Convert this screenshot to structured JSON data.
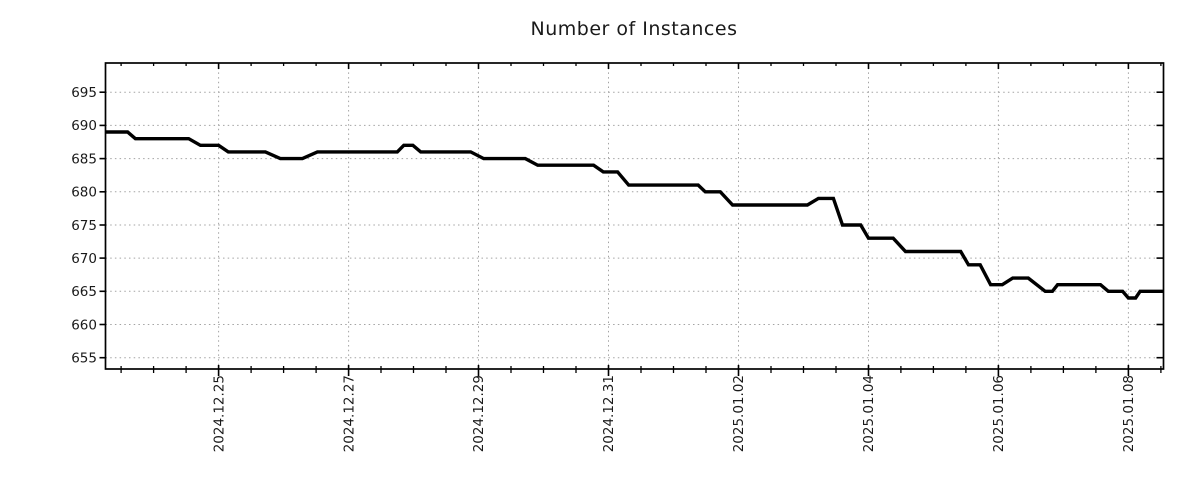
{
  "figure": {
    "background": "#ffffff",
    "text_color": "#1a1a1a"
  },
  "chart_data": {
    "type": "line",
    "title": "Number of Instances",
    "xlabel": "",
    "ylabel": "",
    "legend": "none",
    "grid": {
      "style": "dotted",
      "color": "#a3a3a3",
      "horizontal": true,
      "vertical": true
    },
    "x_axis": {
      "unit": "days relative to 2024-12-25 00:00",
      "range": [
        -1.74,
        14.54
      ],
      "major_ticks": [
        {
          "t": 0,
          "label": "2024.12.25"
        },
        {
          "t": 2,
          "label": "2024.12.27"
        },
        {
          "t": 4,
          "label": "2024.12.29"
        },
        {
          "t": 6,
          "label": "2024.12.31"
        },
        {
          "t": 8,
          "label": "2025.01.02"
        },
        {
          "t": 10,
          "label": "2025.01.04"
        },
        {
          "t": 12,
          "label": "2025.01.06"
        },
        {
          "t": 14,
          "label": "2025.01.08"
        }
      ],
      "minor_tick_interval": 0.5,
      "label_rotation_deg": 90
    },
    "y_axis": {
      "range": [
        653.3,
        699.4
      ],
      "major_ticks": [
        655,
        660,
        665,
        670,
        675,
        680,
        685,
        690,
        695
      ]
    },
    "series": [
      {
        "name": "instances",
        "color": "#000000",
        "line_width": 3.4,
        "points": [
          [
            -1.74,
            689
          ],
          [
            -1.4,
            689
          ],
          [
            -1.28,
            688
          ],
          [
            -0.46,
            688
          ],
          [
            -0.28,
            687
          ],
          [
            0.0,
            687
          ],
          [
            0.15,
            686
          ],
          [
            0.72,
            686
          ],
          [
            0.95,
            685
          ],
          [
            1.29,
            685
          ],
          [
            1.52,
            686
          ],
          [
            2.75,
            686
          ],
          [
            2.85,
            687
          ],
          [
            2.99,
            687
          ],
          [
            3.11,
            686
          ],
          [
            3.88,
            686
          ],
          [
            4.08,
            685
          ],
          [
            4.72,
            685
          ],
          [
            4.91,
            684
          ],
          [
            5.77,
            684
          ],
          [
            5.92,
            683
          ],
          [
            6.14,
            683
          ],
          [
            6.31,
            681
          ],
          [
            7.38,
            681
          ],
          [
            7.49,
            680
          ],
          [
            7.72,
            680
          ],
          [
            7.91,
            678
          ],
          [
            9.06,
            678
          ],
          [
            9.23,
            679
          ],
          [
            9.46,
            679
          ],
          [
            9.6,
            675
          ],
          [
            9.88,
            675
          ],
          [
            10.0,
            673
          ],
          [
            10.38,
            673
          ],
          [
            10.57,
            671
          ],
          [
            11.42,
            671
          ],
          [
            11.54,
            669
          ],
          [
            11.72,
            669
          ],
          [
            11.88,
            666
          ],
          [
            12.06,
            666
          ],
          [
            12.22,
            667
          ],
          [
            12.46,
            667
          ],
          [
            12.72,
            665
          ],
          [
            12.83,
            665
          ],
          [
            12.91,
            666
          ],
          [
            13.57,
            666
          ],
          [
            13.69,
            665
          ],
          [
            13.91,
            665
          ],
          [
            14.0,
            664
          ],
          [
            14.11,
            664
          ],
          [
            14.18,
            665
          ],
          [
            14.54,
            665
          ]
        ]
      }
    ]
  }
}
